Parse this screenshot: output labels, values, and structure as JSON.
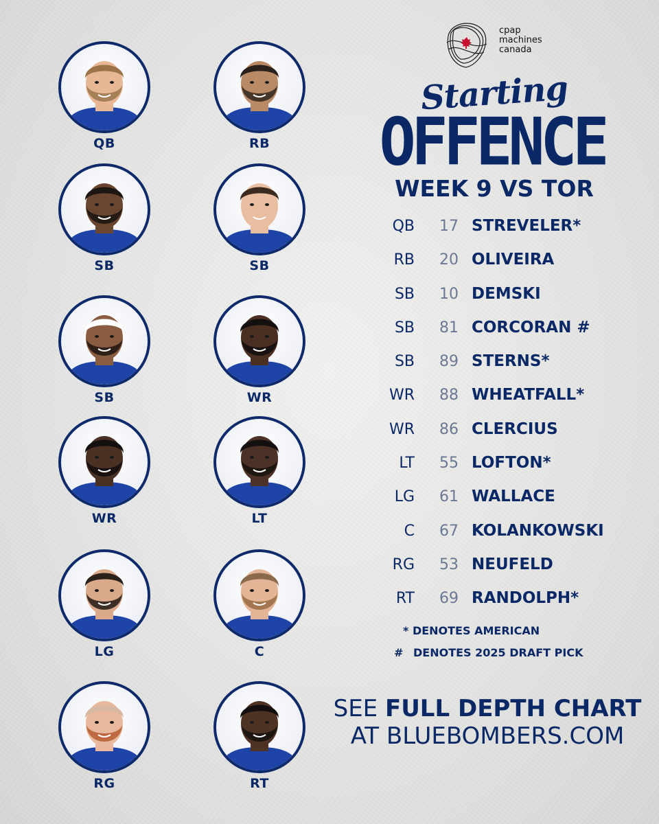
{
  "logo": {
    "line1": "cpap",
    "line2": "machines",
    "line3": "canada"
  },
  "title": {
    "script": "Starting",
    "main": "OFFENCE",
    "subtitle": "WEEK 9 VS TOR"
  },
  "players": [
    {
      "pos": "QB",
      "skin": "#e8b896",
      "hair": "#9a7349",
      "beard": true,
      "beardColor": "#a07a52"
    },
    {
      "pos": "RB",
      "skin": "#b98a66",
      "hair": "#2a211c",
      "beard": true,
      "beardColor": "#3a2c24"
    },
    {
      "pos": "SB",
      "skin": "#6a4631",
      "hair": "#1d1612",
      "beard": true,
      "beardColor": "#1d1612"
    },
    {
      "pos": "SB",
      "skin": "#e9bea0",
      "hair": "#3a2a20",
      "beard": false,
      "beardColor": "#3a2a20"
    },
    {
      "pos": "SB",
      "skin": "#8a5d40",
      "hair": "#ffffff",
      "beard": true,
      "beardColor": "#231a14"
    },
    {
      "pos": "WR",
      "skin": "#4a2f22",
      "hair": "#141010",
      "beard": true,
      "beardColor": "#141010"
    },
    {
      "pos": "WR",
      "skin": "#4b3024",
      "hair": "#141010",
      "beard": true,
      "beardColor": "#141010"
    },
    {
      "pos": "LT",
      "skin": "#4c3226",
      "hair": "#141010",
      "beard": true,
      "beardColor": "#1a1410"
    },
    {
      "pos": "LG",
      "skin": "#d9a98a",
      "hair": "#2b211b",
      "beard": true,
      "beardColor": "#2b211b"
    },
    {
      "pos": "C",
      "skin": "#e3b596",
      "hair": "#8a6a4a",
      "beard": true,
      "beardColor": "#9a6f46"
    },
    {
      "pos": "RG",
      "skin": "#eab89c",
      "hair": "#d8b8a0",
      "beard": true,
      "beardColor": "#b8623a"
    },
    {
      "pos": "RT",
      "skin": "#4e3224",
      "hair": "#141010",
      "beard": true,
      "beardColor": "#1a1410"
    }
  ],
  "roster": [
    {
      "pos": "QB",
      "num": "17",
      "name": "STREVELER*"
    },
    {
      "pos": "RB",
      "num": "20",
      "name": "OLIVEIRA"
    },
    {
      "pos": "SB",
      "num": "10",
      "name": "DEMSKI"
    },
    {
      "pos": "SB",
      "num": "81",
      "name": "CORCORAN #"
    },
    {
      "pos": "SB",
      "num": "89",
      "name": "STERNS*"
    },
    {
      "pos": "WR",
      "num": "88",
      "name": "WHEATFALL*"
    },
    {
      "pos": "WR",
      "num": "86",
      "name": "CLERCIUS"
    },
    {
      "pos": "LT",
      "num": "55",
      "name": "LOFTON*"
    },
    {
      "pos": "LG",
      "num": "61",
      "name": "WALLACE"
    },
    {
      "pos": "C",
      "num": "67",
      "name": "KOLANKOWSKI"
    },
    {
      "pos": "RG",
      "num": "53",
      "name": "NEUFELD"
    },
    {
      "pos": "RT",
      "num": "69",
      "name": "RANDOLPH*"
    }
  ],
  "notes": {
    "american": "* DENOTES AMERICAN",
    "draft_symbol": "#",
    "draft": "DENOTES 2025 DRAFT PICK"
  },
  "cta": {
    "see": "SEE",
    "highlight": "FULL DEPTH CHART",
    "line2": "AT BLUEBOMBERS.COM"
  },
  "colors": {
    "navy": "#0b2866",
    "jersey": "#1f44a8",
    "number_gray": "#6b7893"
  }
}
